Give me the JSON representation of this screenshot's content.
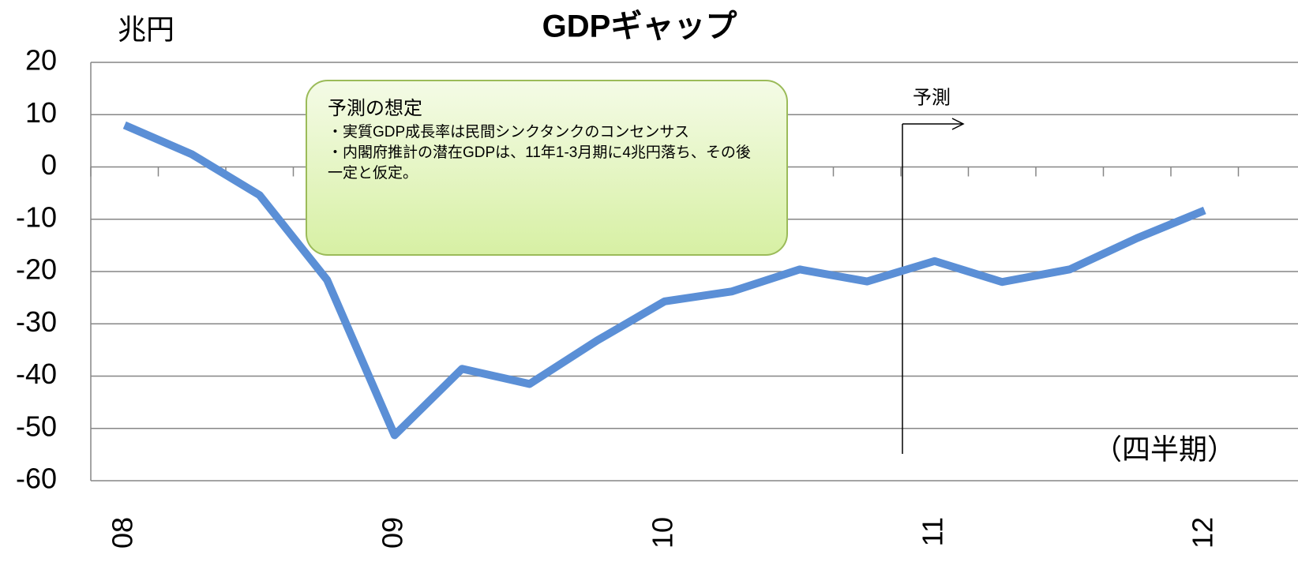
{
  "chart_data": {
    "type": "line",
    "title": "GDPギャップ",
    "y_unit": "兆円",
    "x_unit": "（四半期）",
    "categories": [
      "08",
      null,
      null,
      null,
      "09",
      null,
      null,
      null,
      "10",
      null,
      null,
      null,
      "11",
      null,
      null,
      null,
      "12"
    ],
    "series": [
      {
        "name": "GDPギャップ",
        "color": "#5b8fd6",
        "values": [
          8.0,
          2.4,
          -5.4,
          -21.6,
          -51.3,
          -38.6,
          -41.5,
          -33.2,
          -25.7,
          -23.8,
          -19.6,
          -21.9,
          -18.0,
          -22.0,
          -19.6,
          -13.6,
          -8.3
        ]
      }
    ],
    "ylim": [
      -60,
      20
    ],
    "yticks": [
      -60,
      -50,
      -40,
      -30,
      -20,
      -10,
      0,
      10,
      20
    ],
    "grid": true,
    "forecast_label": "予測",
    "note": {
      "title": "予測の想定",
      "lines": [
        "・実質GDP成長率は民間シンクタンクのコンセンサス",
        "・内閣府推計の潜在GDPは、11年1-3月期に4兆円落ち、その後一定と仮定。"
      ]
    }
  }
}
